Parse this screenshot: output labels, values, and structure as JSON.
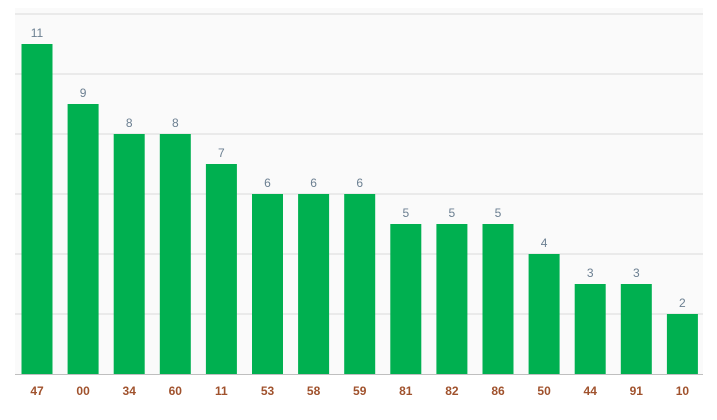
{
  "colors": {
    "bar": "#00b050",
    "value_label": "#6b7f91",
    "category_label": "#a0522d",
    "gridline": "#d9d9d9",
    "axis": "#bfbfbf",
    "plot_background": "#fafafa"
  },
  "chart_data": {
    "type": "bar",
    "title": "",
    "xlabel": "",
    "ylabel": "",
    "categories": [
      "47",
      "00",
      "34",
      "60",
      "11",
      "53",
      "58",
      "59",
      "81",
      "82",
      "86",
      "50",
      "44",
      "91",
      "10"
    ],
    "values": [
      11,
      9,
      8,
      8,
      7,
      6,
      6,
      6,
      5,
      5,
      5,
      4,
      3,
      3,
      2
    ],
    "ylim": [
      0,
      12
    ],
    "grid": true,
    "legend": "none",
    "data_labels": true
  }
}
